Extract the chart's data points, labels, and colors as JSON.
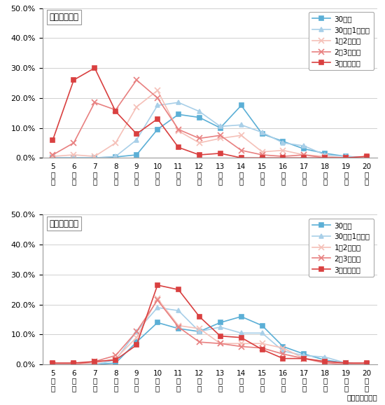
{
  "hours": [
    5,
    6,
    7,
    8,
    9,
    10,
    11,
    12,
    13,
    14,
    15,
    16,
    17,
    18,
    19,
    20
  ],
  "chart1_title": "自宅出発時刻",
  "chart2_title": "回遊開始時刻",
  "legend_labels": [
    "30分圈",
    "30分～1時間圈",
    "1～2時間圈",
    "2～3時間圈",
    "3時間圈以遠"
  ],
  "source_text": "資料：回遊調査",
  "hour_labels": [
    "5時台",
    "6時台",
    "7時台",
    "8時台",
    "9時台",
    "10時台",
    "11時台",
    "12時台",
    "13時台",
    "14時台",
    "15時台",
    "16時台",
    "17時台",
    "18時台",
    "19時台",
    "20時台"
  ],
  "chart1": {
    "series1": [
      0.0,
      0.0,
      0.0,
      0.3,
      1.0,
      9.5,
      14.5,
      13.5,
      10.0,
      17.5,
      8.0,
      5.5,
      3.0,
      1.5,
      0.5,
      0.0
    ],
    "series2": [
      0.0,
      0.0,
      0.0,
      0.5,
      6.0,
      17.5,
      18.5,
      15.5,
      10.5,
      11.0,
      8.5,
      5.0,
      4.0,
      1.0,
      0.5,
      0.0
    ],
    "series3": [
      0.5,
      1.0,
      0.5,
      5.0,
      17.0,
      22.5,
      9.0,
      5.0,
      6.5,
      7.5,
      2.0,
      2.5,
      1.0,
      0.5,
      0.0,
      0.0
    ],
    "series4": [
      1.0,
      5.0,
      18.5,
      16.0,
      26.0,
      20.0,
      9.5,
      6.5,
      7.5,
      2.5,
      1.0,
      0.5,
      1.0,
      0.0,
      0.0,
      0.0
    ],
    "series5": [
      6.0,
      26.0,
      30.0,
      15.5,
      8.0,
      13.0,
      3.5,
      1.0,
      1.5,
      0.0,
      0.0,
      0.0,
      0.0,
      0.0,
      0.0,
      0.5
    ]
  },
  "chart2": {
    "series1": [
      0.0,
      0.0,
      0.0,
      0.5,
      7.5,
      14.0,
      12.0,
      11.0,
      14.0,
      16.0,
      13.0,
      6.0,
      3.5,
      1.5,
      0.5,
      0.0
    ],
    "series2": [
      0.0,
      0.0,
      0.0,
      1.5,
      11.0,
      19.0,
      18.0,
      11.0,
      12.5,
      10.5,
      10.5,
      4.5,
      3.0,
      2.5,
      0.5,
      0.0
    ],
    "series3": [
      0.0,
      0.0,
      0.5,
      2.0,
      9.0,
      22.0,
      13.0,
      12.0,
      7.0,
      7.0,
      7.0,
      5.5,
      2.0,
      1.0,
      0.5,
      0.0
    ],
    "series4": [
      0.0,
      0.0,
      1.0,
      3.0,
      11.0,
      21.5,
      12.5,
      7.5,
      7.0,
      6.0,
      5.5,
      3.5,
      2.0,
      0.5,
      0.0,
      0.0
    ],
    "series5": [
      0.5,
      0.5,
      1.0,
      1.5,
      6.5,
      26.5,
      25.0,
      16.0,
      9.5,
      9.0,
      5.0,
      2.0,
      2.0,
      1.0,
      0.5,
      0.5
    ]
  },
  "colors": [
    "#5bafd6",
    "#a8cfe8",
    "#f5c0b8",
    "#e88080",
    "#d94040"
  ],
  "markers": [
    "s",
    "^",
    "x",
    "x",
    "s"
  ],
  "ylim": [
    0,
    50
  ],
  "yticks": [
    0,
    10,
    20,
    30,
    40,
    50
  ]
}
